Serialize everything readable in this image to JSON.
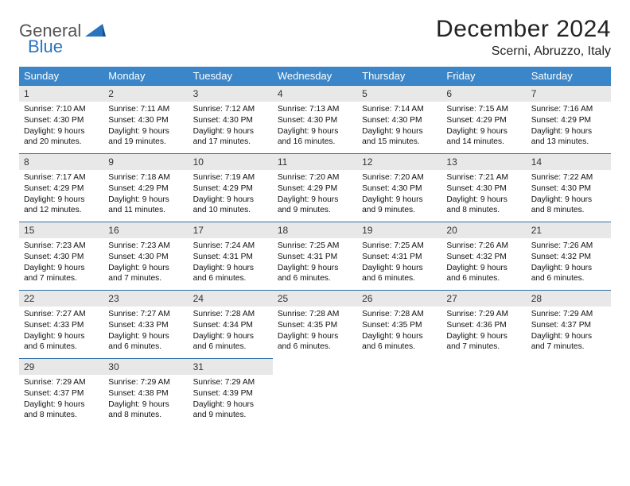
{
  "logo": {
    "text1": "General",
    "text2": "Blue"
  },
  "title": "December 2024",
  "location": "Scerni, Abruzzo, Italy",
  "colors": {
    "header_bg": "#3b86c8",
    "header_text": "#ffffff",
    "daybar_bg": "#e8e8e8",
    "daybar_border": "#2f6ea8",
    "logo_gray": "#555555",
    "logo_blue": "#2a74bf"
  },
  "weekdays": [
    "Sunday",
    "Monday",
    "Tuesday",
    "Wednesday",
    "Thursday",
    "Friday",
    "Saturday"
  ],
  "weeks": [
    [
      {
        "n": "1",
        "sr": "Sunrise: 7:10 AM",
        "ss": "Sunset: 4:30 PM",
        "d1": "Daylight: 9 hours",
        "d2": "and 20 minutes."
      },
      {
        "n": "2",
        "sr": "Sunrise: 7:11 AM",
        "ss": "Sunset: 4:30 PM",
        "d1": "Daylight: 9 hours",
        "d2": "and 19 minutes."
      },
      {
        "n": "3",
        "sr": "Sunrise: 7:12 AM",
        "ss": "Sunset: 4:30 PM",
        "d1": "Daylight: 9 hours",
        "d2": "and 17 minutes."
      },
      {
        "n": "4",
        "sr": "Sunrise: 7:13 AM",
        "ss": "Sunset: 4:30 PM",
        "d1": "Daylight: 9 hours",
        "d2": "and 16 minutes."
      },
      {
        "n": "5",
        "sr": "Sunrise: 7:14 AM",
        "ss": "Sunset: 4:30 PM",
        "d1": "Daylight: 9 hours",
        "d2": "and 15 minutes."
      },
      {
        "n": "6",
        "sr": "Sunrise: 7:15 AM",
        "ss": "Sunset: 4:29 PM",
        "d1": "Daylight: 9 hours",
        "d2": "and 14 minutes."
      },
      {
        "n": "7",
        "sr": "Sunrise: 7:16 AM",
        "ss": "Sunset: 4:29 PM",
        "d1": "Daylight: 9 hours",
        "d2": "and 13 minutes."
      }
    ],
    [
      {
        "n": "8",
        "sr": "Sunrise: 7:17 AM",
        "ss": "Sunset: 4:29 PM",
        "d1": "Daylight: 9 hours",
        "d2": "and 12 minutes."
      },
      {
        "n": "9",
        "sr": "Sunrise: 7:18 AM",
        "ss": "Sunset: 4:29 PM",
        "d1": "Daylight: 9 hours",
        "d2": "and 11 minutes."
      },
      {
        "n": "10",
        "sr": "Sunrise: 7:19 AM",
        "ss": "Sunset: 4:29 PM",
        "d1": "Daylight: 9 hours",
        "d2": "and 10 minutes."
      },
      {
        "n": "11",
        "sr": "Sunrise: 7:20 AM",
        "ss": "Sunset: 4:29 PM",
        "d1": "Daylight: 9 hours",
        "d2": "and 9 minutes."
      },
      {
        "n": "12",
        "sr": "Sunrise: 7:20 AM",
        "ss": "Sunset: 4:30 PM",
        "d1": "Daylight: 9 hours",
        "d2": "and 9 minutes."
      },
      {
        "n": "13",
        "sr": "Sunrise: 7:21 AM",
        "ss": "Sunset: 4:30 PM",
        "d1": "Daylight: 9 hours",
        "d2": "and 8 minutes."
      },
      {
        "n": "14",
        "sr": "Sunrise: 7:22 AM",
        "ss": "Sunset: 4:30 PM",
        "d1": "Daylight: 9 hours",
        "d2": "and 8 minutes."
      }
    ],
    [
      {
        "n": "15",
        "sr": "Sunrise: 7:23 AM",
        "ss": "Sunset: 4:30 PM",
        "d1": "Daylight: 9 hours",
        "d2": "and 7 minutes."
      },
      {
        "n": "16",
        "sr": "Sunrise: 7:23 AM",
        "ss": "Sunset: 4:30 PM",
        "d1": "Daylight: 9 hours",
        "d2": "and 7 minutes."
      },
      {
        "n": "17",
        "sr": "Sunrise: 7:24 AM",
        "ss": "Sunset: 4:31 PM",
        "d1": "Daylight: 9 hours",
        "d2": "and 6 minutes."
      },
      {
        "n": "18",
        "sr": "Sunrise: 7:25 AM",
        "ss": "Sunset: 4:31 PM",
        "d1": "Daylight: 9 hours",
        "d2": "and 6 minutes."
      },
      {
        "n": "19",
        "sr": "Sunrise: 7:25 AM",
        "ss": "Sunset: 4:31 PM",
        "d1": "Daylight: 9 hours",
        "d2": "and 6 minutes."
      },
      {
        "n": "20",
        "sr": "Sunrise: 7:26 AM",
        "ss": "Sunset: 4:32 PM",
        "d1": "Daylight: 9 hours",
        "d2": "and 6 minutes."
      },
      {
        "n": "21",
        "sr": "Sunrise: 7:26 AM",
        "ss": "Sunset: 4:32 PM",
        "d1": "Daylight: 9 hours",
        "d2": "and 6 minutes."
      }
    ],
    [
      {
        "n": "22",
        "sr": "Sunrise: 7:27 AM",
        "ss": "Sunset: 4:33 PM",
        "d1": "Daylight: 9 hours",
        "d2": "and 6 minutes."
      },
      {
        "n": "23",
        "sr": "Sunrise: 7:27 AM",
        "ss": "Sunset: 4:33 PM",
        "d1": "Daylight: 9 hours",
        "d2": "and 6 minutes."
      },
      {
        "n": "24",
        "sr": "Sunrise: 7:28 AM",
        "ss": "Sunset: 4:34 PM",
        "d1": "Daylight: 9 hours",
        "d2": "and 6 minutes."
      },
      {
        "n": "25",
        "sr": "Sunrise: 7:28 AM",
        "ss": "Sunset: 4:35 PM",
        "d1": "Daylight: 9 hours",
        "d2": "and 6 minutes."
      },
      {
        "n": "26",
        "sr": "Sunrise: 7:28 AM",
        "ss": "Sunset: 4:35 PM",
        "d1": "Daylight: 9 hours",
        "d2": "and 6 minutes."
      },
      {
        "n": "27",
        "sr": "Sunrise: 7:29 AM",
        "ss": "Sunset: 4:36 PM",
        "d1": "Daylight: 9 hours",
        "d2": "and 7 minutes."
      },
      {
        "n": "28",
        "sr": "Sunrise: 7:29 AM",
        "ss": "Sunset: 4:37 PM",
        "d1": "Daylight: 9 hours",
        "d2": "and 7 minutes."
      }
    ],
    [
      {
        "n": "29",
        "sr": "Sunrise: 7:29 AM",
        "ss": "Sunset: 4:37 PM",
        "d1": "Daylight: 9 hours",
        "d2": "and 8 minutes."
      },
      {
        "n": "30",
        "sr": "Sunrise: 7:29 AM",
        "ss": "Sunset: 4:38 PM",
        "d1": "Daylight: 9 hours",
        "d2": "and 8 minutes."
      },
      {
        "n": "31",
        "sr": "Sunrise: 7:29 AM",
        "ss": "Sunset: 4:39 PM",
        "d1": "Daylight: 9 hours",
        "d2": "and 9 minutes."
      },
      null,
      null,
      null,
      null
    ]
  ]
}
